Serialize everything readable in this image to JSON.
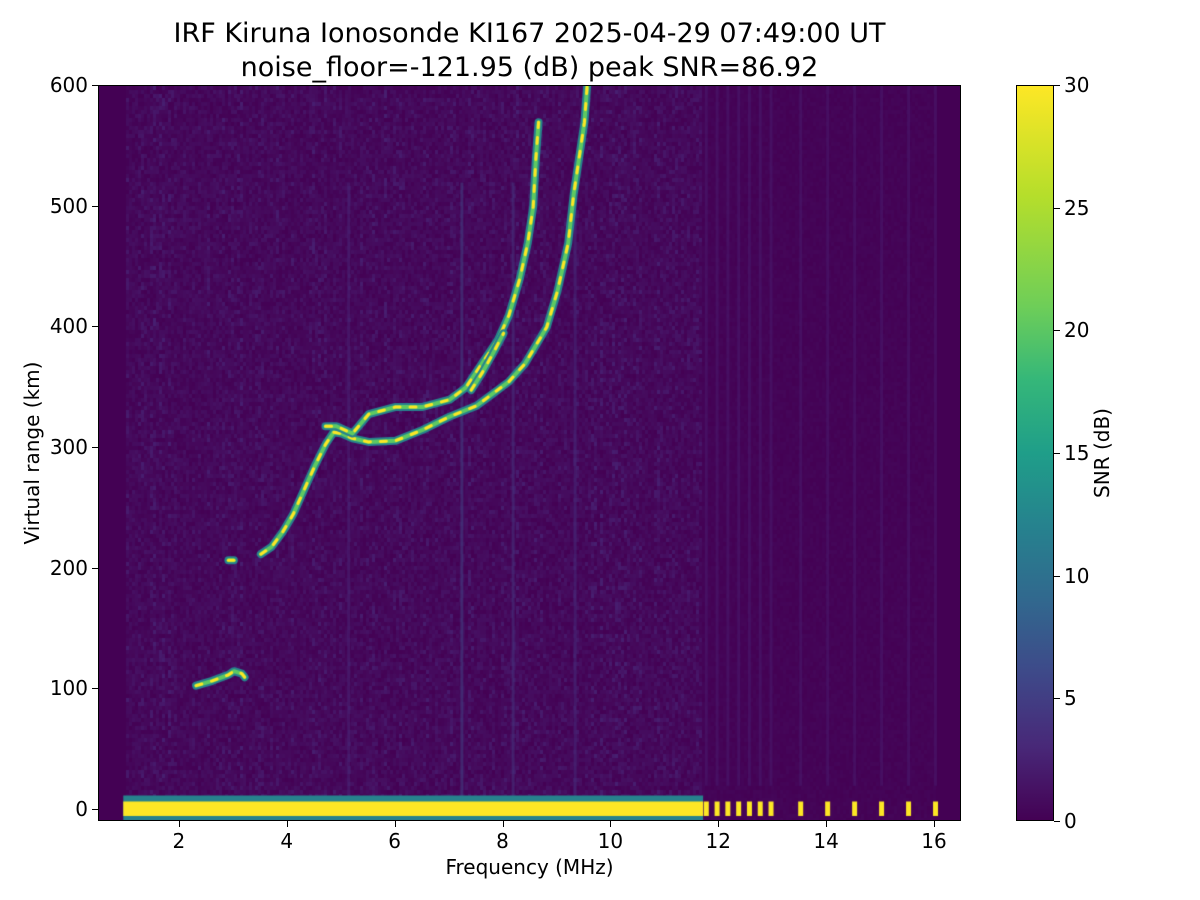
{
  "chart_data": {
    "type": "heatmap",
    "title": "IRF Kiruna Ionosonde KI167 2025-04-29 07:49:00  UT",
    "subtitle": "noise_floor=-121.95 (dB) peak SNR=86.92",
    "xlabel": "Frequency (MHz)",
    "ylabel": "Virtual range (km)",
    "xlim": [
      0.5,
      16.5
    ],
    "ylim": [
      -10,
      600
    ],
    "xticks": [
      2,
      4,
      6,
      8,
      10,
      12,
      14,
      16
    ],
    "yticks": [
      0,
      100,
      200,
      300,
      400,
      500,
      600
    ],
    "colorbar": {
      "label": "SNR (dB)",
      "range": [
        0,
        30
      ],
      "ticks": [
        0,
        5,
        10,
        15,
        20,
        25,
        30
      ],
      "colormap": "viridis"
    },
    "grid": false,
    "traces": [
      {
        "points": [
          [
            2.3,
            103
          ],
          [
            2.6,
            107
          ],
          [
            2.9,
            112
          ],
          [
            3.0,
            115
          ],
          [
            3.15,
            113
          ],
          [
            3.2,
            110
          ]
        ]
      },
      {
        "points": [
          [
            2.9,
            207
          ],
          [
            3.0,
            207
          ]
        ]
      },
      {
        "points": [
          [
            3.5,
            212
          ],
          [
            3.7,
            218
          ],
          [
            3.9,
            230
          ],
          [
            4.1,
            245
          ],
          [
            4.3,
            265
          ],
          [
            4.5,
            285
          ],
          [
            4.7,
            303
          ],
          [
            4.85,
            313
          ],
          [
            5.0,
            312
          ],
          [
            5.2,
            308
          ],
          [
            5.5,
            305
          ],
          [
            6.0,
            306
          ],
          [
            6.5,
            315
          ],
          [
            7.0,
            326
          ],
          [
            7.5,
            335
          ],
          [
            7.8,
            345
          ],
          [
            8.1,
            355
          ],
          [
            8.4,
            370
          ],
          [
            8.6,
            385
          ],
          [
            8.8,
            400
          ],
          [
            9.0,
            430
          ],
          [
            9.2,
            470
          ],
          [
            9.3,
            510
          ],
          [
            9.4,
            540
          ],
          [
            9.5,
            570
          ],
          [
            9.55,
            600
          ]
        ]
      },
      {
        "points": [
          [
            4.7,
            318
          ],
          [
            4.9,
            318
          ],
          [
            5.2,
            312
          ],
          [
            5.5,
            328
          ],
          [
            6.0,
            334
          ],
          [
            6.5,
            334
          ],
          [
            7.0,
            340
          ],
          [
            7.3,
            350
          ],
          [
            7.6,
            370
          ],
          [
            7.9,
            390
          ],
          [
            8.1,
            410
          ],
          [
            8.3,
            440
          ],
          [
            8.45,
            470
          ],
          [
            8.55,
            500
          ],
          [
            8.6,
            540
          ],
          [
            8.65,
            570
          ]
        ]
      },
      {
        "points": [
          [
            7.4,
            348
          ],
          [
            7.6,
            362
          ],
          [
            7.8,
            378
          ],
          [
            8.0,
            395
          ]
        ]
      }
    ],
    "bottom_band": {
      "y_range": [
        -5,
        7
      ],
      "continuous_x_range": [
        0.95,
        11.7
      ],
      "discrete_x": [
        11.75,
        11.95,
        12.15,
        12.35,
        12.55,
        12.75,
        12.95,
        13.5,
        14.0,
        14.5,
        15.0,
        15.5,
        16.0
      ],
      "snr": 30
    }
  }
}
